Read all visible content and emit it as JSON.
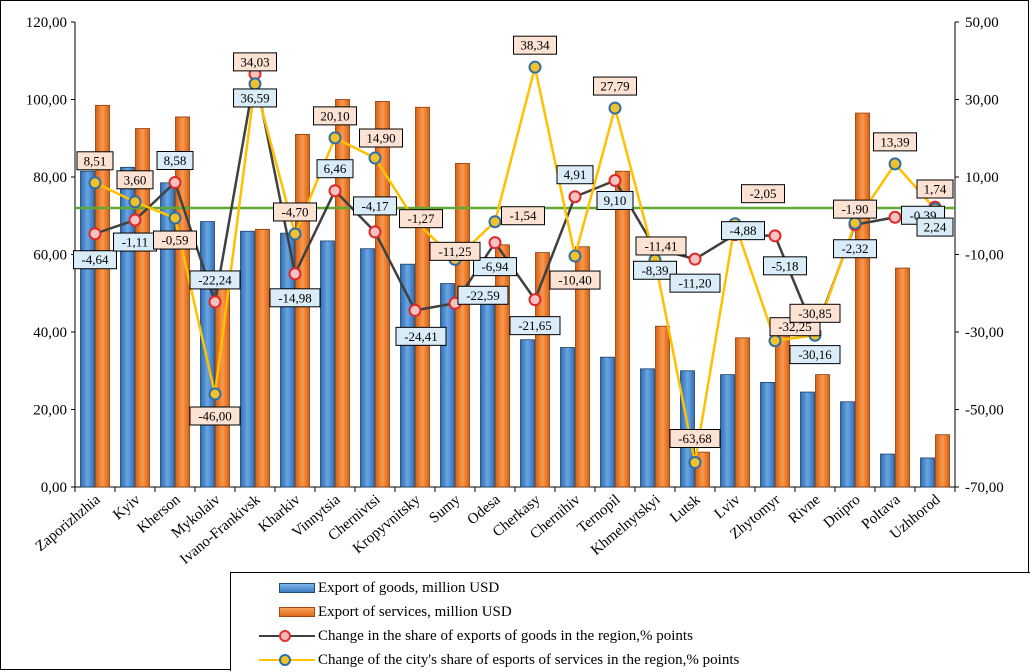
{
  "chart_data": {
    "type": "bar",
    "categories": [
      "Zaporizhzhia",
      "Kyiv",
      "Kherson",
      "Mykolaiv",
      "Ivano-Frankivsk",
      "Kharkiv",
      "Vinnytsia",
      "Chernivtsi",
      "Kropyvnitsky",
      "Sumy",
      "Odesa",
      "Cherkasy",
      "Chernihiv",
      "Ternopil",
      "Khmelnytskyi",
      "Lutsk",
      "Lviv",
      "Zhytomyr",
      "Rivne",
      "Dnipro",
      "Poltava",
      "Uzhhorod"
    ],
    "y_left": {
      "ylim": [
        0,
        120
      ],
      "ticks": [
        "0,00",
        "20,00",
        "40,00",
        "60,00",
        "80,00",
        "100,00",
        "120,00"
      ]
    },
    "y_right": {
      "ylim": [
        -70,
        50
      ],
      "ticks": [
        "-70,00",
        "-50,00",
        "-30,00",
        "-10,00",
        "10,00",
        "30,00",
        "50,00"
      ]
    },
    "series": [
      {
        "name": "Export of goods, million USD",
        "kind": "bar",
        "axis": "left",
        "color": "#4a86c8",
        "values": [
          81.5,
          82.5,
          78.5,
          68.5,
          66.0,
          65.5,
          63.5,
          61.5,
          57.5,
          52.5,
          49.0,
          38.0,
          36.0,
          33.5,
          30.5,
          30.0,
          29.0,
          27.0,
          24.5,
          22.0,
          8.5,
          7.5
        ]
      },
      {
        "name": "Export of services, million USD",
        "kind": "bar",
        "axis": "left",
        "color": "#ed7d31",
        "values": [
          98.5,
          92.5,
          95.5,
          52.0,
          66.5,
          91.0,
          100.0,
          99.5,
          98.0,
          83.5,
          62.5,
          60.5,
          62.0,
          81.5,
          41.5,
          9.0,
          38.5,
          41.5,
          29.0,
          96.5,
          56.5,
          13.5
        ]
      },
      {
        "name": "Change in the share of exports of goods in the region,% points",
        "kind": "line",
        "axis": "right",
        "color": "#404040",
        "marker": "#e53030",
        "values": [
          -4.64,
          -1.11,
          8.58,
          -22.24,
          36.59,
          -14.98,
          6.46,
          -4.17,
          -24.41,
          -22.59,
          -6.94,
          -21.65,
          4.91,
          9.1,
          -8.39,
          -11.2,
          -4.88,
          -5.18,
          -30.16,
          -2.32,
          -0.39,
          2.24
        ],
        "labels": [
          "-4,64",
          "-1,11",
          "8,58",
          "-22,24",
          "36,59",
          "-14,98",
          "6,46",
          "-4,17",
          "-24,41",
          "-22,59",
          "-6,94",
          "-21,65",
          "4,91",
          "9,10",
          "-8,39",
          "-11,20",
          "-4,88",
          "-5,18",
          "-30,16",
          "-2,32",
          "-0,39",
          "2,24"
        ]
      },
      {
        "name": "Change of the city's share of esports of services in the region,% points",
        "kind": "line",
        "axis": "right",
        "color": "#ffc000",
        "marker": "#f2c12e",
        "values": [
          8.51,
          3.6,
          -0.59,
          -46.0,
          34.03,
          -4.7,
          20.1,
          14.9,
          -1.27,
          -11.25,
          -1.54,
          38.34,
          -10.4,
          27.79,
          -11.41,
          -63.68,
          -2.05,
          -32.25,
          -30.85,
          -1.9,
          13.39,
          1.74
        ],
        "labels": [
          "8,51",
          "3,60",
          "-0,59",
          "-46,00",
          "34,03",
          "-4,70",
          "20,10",
          "14,90",
          "-1,27",
          "-11,25",
          "-1,54",
          "38,34",
          "-10,40",
          "27,79",
          "-11,41",
          "-63,68",
          "-2,05",
          "-32,25",
          "-30,85",
          "-1,90",
          "13,39",
          "1,74"
        ]
      }
    ],
    "reference_line": {
      "axis": "right",
      "value": 2.0,
      "color": "#5fa832"
    },
    "legend_position": "bottom",
    "grid": false
  },
  "legend": {
    "goods": "Export of goods, million USD",
    "services": "Export of services, million USD",
    "goods_change": "Change in the share of exports of goods in the region,% points",
    "services_change": "Change of the city's share of esports of services in the region,% points"
  }
}
